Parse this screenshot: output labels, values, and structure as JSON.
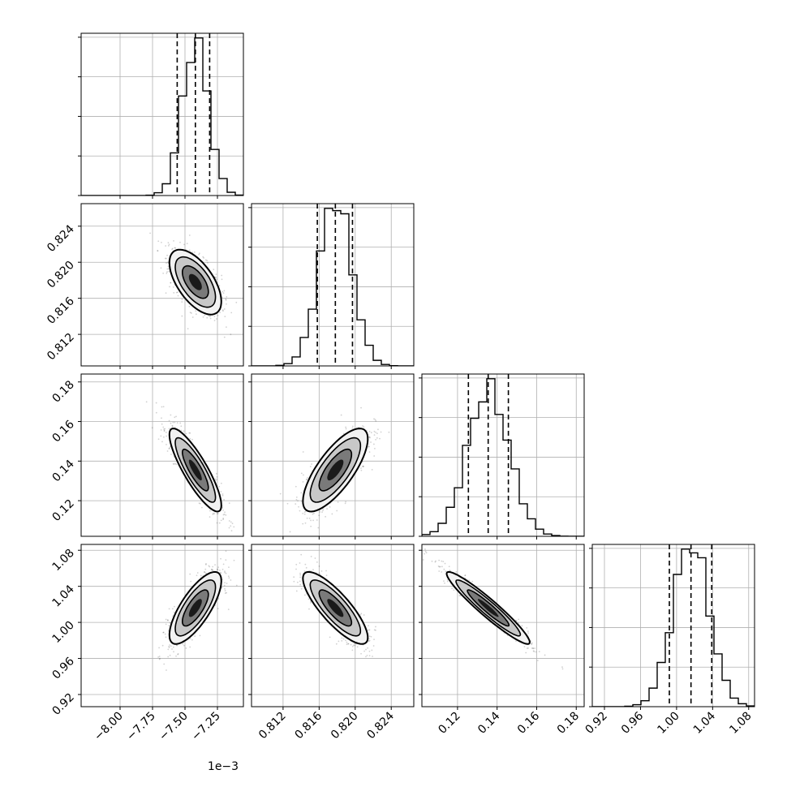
{
  "chart_data": {
    "type": "corner",
    "grid": true,
    "axis_offset_label": "1e−3",
    "params": [
      {
        "range": [
          -8.3,
          -7.05
        ],
        "ticks": [
          -8.0,
          -7.75,
          -7.5,
          -7.25
        ],
        "tick_labels": [
          "−8.00",
          "−7.75",
          "−7.50",
          "−7.25"
        ],
        "mean": -7.42,
        "sd": 0.1,
        "quantiles": [
          -7.56,
          -7.42,
          -7.31
        ]
      },
      {
        "range": [
          0.8085,
          0.8265
        ],
        "ticks": [
          0.812,
          0.816,
          0.82,
          0.824
        ],
        "tick_labels": [
          "0.812",
          "0.816",
          "0.820",
          "0.824"
        ],
        "mean": 0.8178,
        "sd": 0.0018,
        "quantiles": [
          0.8158,
          0.8178,
          0.8197
        ]
      },
      {
        "range": [
          0.102,
          0.184
        ],
        "ticks": [
          0.12,
          0.14,
          0.16,
          0.18
        ],
        "tick_labels": [
          "0.12",
          "0.14",
          "0.16",
          "0.18"
        ],
        "mean": 0.1355,
        "sd": 0.0105,
        "quantiles": [
          0.1255,
          0.1355,
          0.1457
        ]
      },
      {
        "range": [
          0.9065,
          1.0865
        ],
        "ticks": [
          0.92,
          0.96,
          1.0,
          1.04,
          1.08
        ],
        "tick_labels": [
          "0.92",
          "0.96",
          "1.00",
          "1.04",
          "1.08"
        ],
        "mean": 1.016,
        "sd": 0.02,
        "quantiles": [
          0.992,
          1.016,
          1.039
        ]
      }
    ],
    "correlations": [
      {
        "i": 1,
        "j": 0,
        "rho": -0.6
      },
      {
        "i": 2,
        "j": 0,
        "rho": -0.85
      },
      {
        "i": 2,
        "j": 1,
        "rho": 0.75
      },
      {
        "i": 3,
        "j": 0,
        "rho": 0.75
      },
      {
        "i": 3,
        "j": 1,
        "rho": -0.82
      },
      {
        "i": 3,
        "j": 2,
        "rho": -0.95
      }
    ],
    "colors": {
      "axes": "#000000",
      "grid": "#b0b0b0",
      "scatter": "#000000",
      "contour": "#000000"
    }
  }
}
